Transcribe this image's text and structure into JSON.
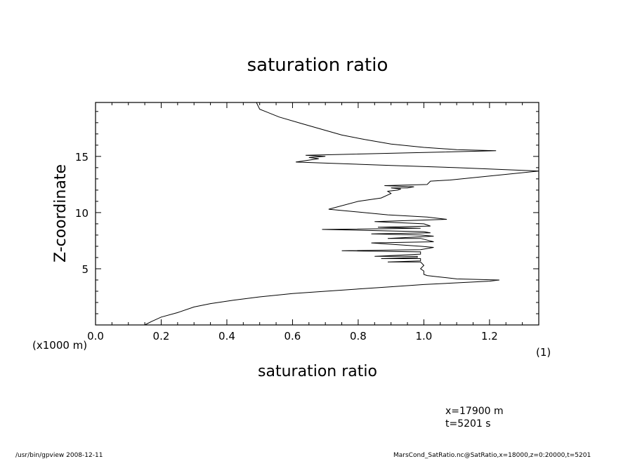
{
  "chart_data": {
    "type": "line",
    "title": "saturation ratio",
    "xlabel": "saturation ratio",
    "ylabel": "Z-coordinate",
    "x_unit": "(1)",
    "y_unit": "(x1000 m)",
    "xlim": [
      0.0,
      1.35
    ],
    "ylim": [
      0,
      19.8
    ],
    "x_ticks": [
      "0.0",
      "0.2",
      "0.4",
      "0.6",
      "0.8",
      "1.0",
      "1.2"
    ],
    "y_ticks": [
      "5",
      "10",
      "15"
    ],
    "grid": false,
    "series": [
      {
        "x": [
          0.15,
          0.17,
          0.2,
          0.25,
          0.3,
          0.35,
          0.42,
          0.5,
          0.6,
          0.7,
          0.8,
          0.9,
          1.0,
          1.1,
          1.2,
          1.23,
          1.1,
          1.07,
          1.04,
          1.01,
          1.0,
          1.0,
          0.99,
          1.0,
          0.99,
          0.89,
          0.99,
          0.99,
          0.87,
          0.98,
          0.98,
          0.85,
          0.99,
          0.99,
          0.75,
          0.99,
          1.03,
          0.99,
          0.84,
          1.03,
          0.99,
          0.89,
          1.03,
          0.99,
          0.84,
          1.02,
          1.0,
          0.69,
          0.99,
          0.86,
          1.02,
          1.0,
          0.85,
          1.07,
          1.01,
          0.89,
          0.71,
          0.8,
          0.87,
          0.9,
          0.89,
          0.92,
          0.93,
          0.9,
          0.95,
          0.97,
          0.88,
          1.01,
          1.02,
          1.08,
          1.35,
          1.1,
          0.9,
          0.61,
          0.68,
          0.65,
          0.7,
          0.64,
          1.22,
          1.1,
          1.0,
          0.9,
          0.82,
          0.75,
          0.69,
          0.63,
          0.56,
          0.5,
          0.49
        ],
        "y": [
          0.0,
          0.3,
          0.7,
          1.1,
          1.6,
          1.9,
          2.2,
          2.5,
          2.8,
          3.0,
          3.2,
          3.4,
          3.6,
          3.75,
          3.9,
          4.0,
          4.1,
          4.2,
          4.3,
          4.4,
          4.5,
          4.8,
          5.0,
          5.3,
          5.6,
          5.6,
          5.7,
          5.9,
          5.9,
          6.0,
          6.1,
          6.1,
          6.3,
          6.5,
          6.6,
          6.7,
          6.9,
          7.0,
          7.3,
          7.4,
          7.7,
          7.7,
          7.9,
          8.0,
          8.1,
          8.2,
          8.3,
          8.5,
          8.6,
          8.7,
          8.8,
          9.0,
          9.2,
          9.4,
          9.6,
          9.8,
          10.3,
          11.0,
          11.3,
          11.7,
          11.9,
          12.0,
          12.1,
          12.2,
          12.2,
          12.3,
          12.4,
          12.5,
          12.8,
          12.9,
          13.7,
          14.0,
          14.2,
          14.5,
          14.8,
          14.9,
          15.0,
          15.1,
          15.5,
          15.6,
          15.8,
          16.1,
          16.5,
          16.9,
          17.4,
          17.9,
          18.5,
          19.2,
          19.8
        ]
      }
    ]
  },
  "info": {
    "position": "x=17900  m",
    "time": "t=5201  s"
  },
  "footer": {
    "left": "/usr/bin/gpview   2008-12-11",
    "right": "MarsCond_SatRatio.nc@SatRatio,x=18000,z=0:20000,t=5201"
  }
}
